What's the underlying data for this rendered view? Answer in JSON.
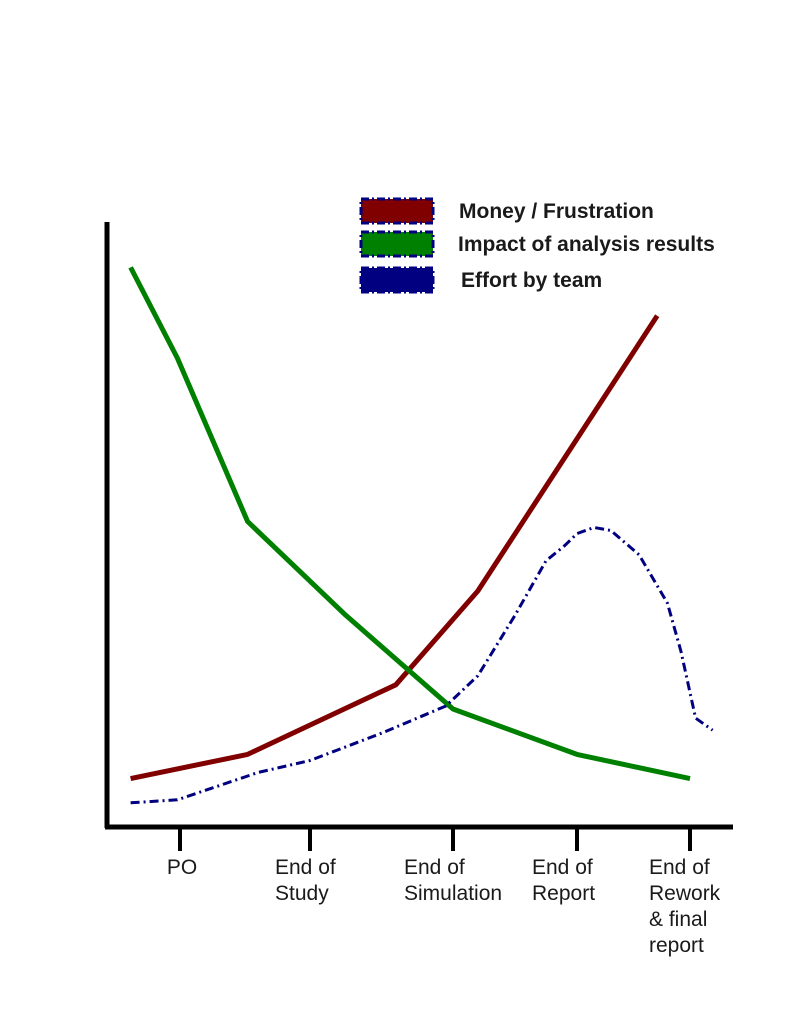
{
  "chart_data": {
    "type": "line",
    "title": "",
    "xlabel": "",
    "ylabel": "",
    "categories": [
      "PO",
      "End of Study",
      "End of Simulation",
      "End of Report",
      "End of Rework & final report"
    ],
    "category_lines": [
      [
        "PO"
      ],
      [
        "End of",
        "Study"
      ],
      [
        "End of",
        "Simulation"
      ],
      [
        "End of",
        "Report"
      ],
      [
        "End of",
        "Rework",
        "& final",
        "report"
      ]
    ],
    "xlim": [
      -0.38,
      4.34
    ],
    "ylim": [
      0,
      100
    ],
    "grid": false,
    "legend_position": "top-right",
    "series": [
      {
        "name": "Money / Frustration",
        "color": "#800000",
        "style": "solid",
        "points": [
          [
            -0.38,
            8
          ],
          [
            0.52,
            12
          ],
          [
            1.6,
            23.5
          ],
          [
            2.2,
            39
          ],
          [
            3.71,
            84.5
          ]
        ]
      },
      {
        "name": "Impact of analysis results",
        "color": "#008000",
        "style": "solid",
        "points": [
          [
            -0.38,
            92.5
          ],
          [
            -0.02,
            77.5
          ],
          [
            0.52,
            50.5
          ],
          [
            1.25,
            35
          ],
          [
            2.0,
            19.5
          ],
          [
            3.0,
            12
          ],
          [
            4.0,
            8
          ]
        ]
      },
      {
        "name": "Effort by team",
        "color": "#000080",
        "style": "dashdot",
        "points": [
          [
            -0.38,
            4
          ],
          [
            -0.02,
            4.5
          ],
          [
            0.6,
            9
          ],
          [
            1.0,
            11
          ],
          [
            1.5,
            15.5
          ],
          [
            1.95,
            20
          ],
          [
            2.2,
            25
          ],
          [
            2.5,
            35
          ],
          [
            2.75,
            44
          ],
          [
            2.9,
            46.5
          ],
          [
            3.0,
            48.5
          ],
          [
            3.15,
            49.5
          ],
          [
            3.3,
            49
          ],
          [
            3.55,
            45
          ],
          [
            3.8,
            37
          ],
          [
            3.92,
            29
          ],
          [
            4.05,
            18
          ],
          [
            4.2,
            16
          ]
        ]
      }
    ]
  }
}
